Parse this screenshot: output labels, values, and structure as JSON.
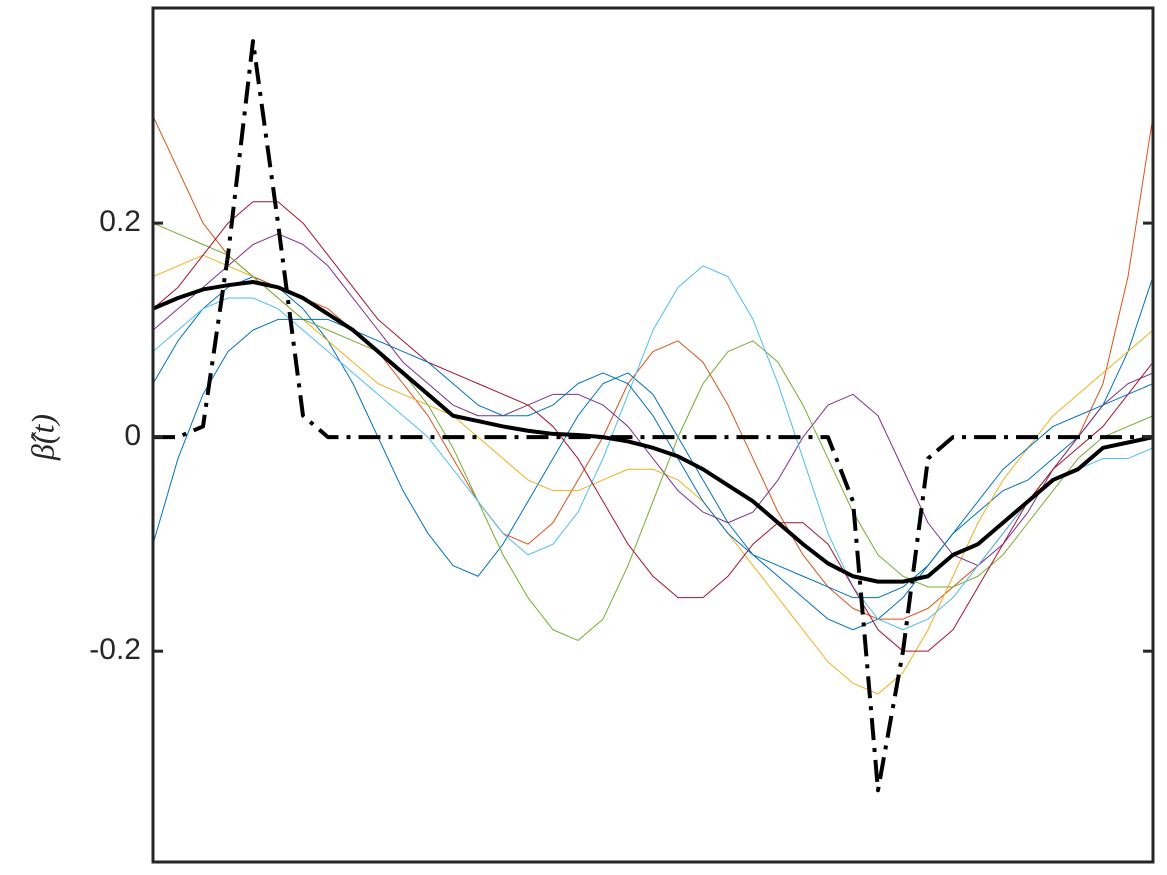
{
  "chart_data": {
    "type": "line",
    "y_label": "β̂(t)",
    "x": [
      0,
      0.025,
      0.05,
      0.075,
      0.1,
      0.125,
      0.15,
      0.175,
      0.2,
      0.225,
      0.25,
      0.275,
      0.3,
      0.325,
      0.35,
      0.375,
      0.4,
      0.425,
      0.45,
      0.475,
      0.5,
      0.525,
      0.55,
      0.575,
      0.6,
      0.625,
      0.65,
      0.675,
      0.7,
      0.725,
      0.75,
      0.775,
      0.8,
      0.825,
      0.85,
      0.875,
      0.9,
      0.925,
      0.95,
      0.975,
      1
    ],
    "xlim": [
      0,
      1
    ],
    "ylim": [
      -0.397,
      0.401
    ],
    "yticks": [
      -0.2,
      0,
      0.2
    ],
    "series": [
      {
        "color": "#0072BD",
        "linewidth": 1,
        "linestyle": "-",
        "values": [
          0.05,
          0.09,
          0.12,
          0.14,
          0.15,
          0.14,
          0.12,
          0.09,
          0.05,
          0.0,
          -0.05,
          -0.09,
          -0.12,
          -0.13,
          -0.1,
          -0.06,
          -0.02,
          0.02,
          0.05,
          0.06,
          0.04,
          0.0,
          -0.04,
          -0.08,
          -0.11,
          -0.13,
          -0.15,
          -0.17,
          -0.18,
          -0.17,
          -0.15,
          -0.12,
          -0.09,
          -0.07,
          -0.05,
          -0.04,
          -0.02,
          0.0,
          0.03,
          0.08,
          0.15
        ]
      },
      {
        "color": "#D95319",
        "linewidth": 1,
        "linestyle": "-",
        "values": [
          0.3,
          0.25,
          0.2,
          0.17,
          0.15,
          0.14,
          0.13,
          0.12,
          0.1,
          0.08,
          0.05,
          0.02,
          -0.02,
          -0.06,
          -0.09,
          -0.1,
          -0.08,
          -0.04,
          0.0,
          0.05,
          0.08,
          0.09,
          0.07,
          0.03,
          -0.02,
          -0.07,
          -0.11,
          -0.14,
          -0.16,
          -0.17,
          -0.17,
          -0.16,
          -0.14,
          -0.12,
          -0.09,
          -0.06,
          -0.03,
          0.0,
          0.05,
          0.15,
          0.3
        ]
      },
      {
        "color": "#EDB120",
        "linewidth": 1,
        "linestyle": "-",
        "values": [
          0.15,
          0.16,
          0.17,
          0.16,
          0.15,
          0.13,
          0.11,
          0.09,
          0.07,
          0.05,
          0.04,
          0.03,
          0.02,
          0.0,
          -0.02,
          -0.04,
          -0.05,
          -0.05,
          -0.04,
          -0.03,
          -0.03,
          -0.04,
          -0.06,
          -0.09,
          -0.12,
          -0.15,
          -0.18,
          -0.21,
          -0.23,
          -0.24,
          -0.22,
          -0.18,
          -0.13,
          -0.08,
          -0.04,
          -0.01,
          0.02,
          0.04,
          0.06,
          0.08,
          0.1
        ]
      },
      {
        "color": "#7E2F8E",
        "linewidth": 1,
        "linestyle": "-",
        "values": [
          0.1,
          0.12,
          0.14,
          0.16,
          0.18,
          0.19,
          0.18,
          0.16,
          0.13,
          0.1,
          0.07,
          0.05,
          0.03,
          0.02,
          0.02,
          0.03,
          0.04,
          0.04,
          0.03,
          0.01,
          -0.02,
          -0.05,
          -0.07,
          -0.08,
          -0.07,
          -0.04,
          0.0,
          0.03,
          0.04,
          0.02,
          -0.03,
          -0.08,
          -0.11,
          -0.12,
          -0.1,
          -0.07,
          -0.03,
          0.0,
          0.03,
          0.05,
          0.06
        ]
      },
      {
        "color": "#77AC30",
        "linewidth": 1,
        "linestyle": "-",
        "values": [
          0.2,
          0.19,
          0.18,
          0.17,
          0.15,
          0.13,
          0.11,
          0.1,
          0.09,
          0.08,
          0.06,
          0.03,
          -0.01,
          -0.06,
          -0.11,
          -0.15,
          -0.18,
          -0.19,
          -0.17,
          -0.12,
          -0.06,
          0.0,
          0.05,
          0.08,
          0.09,
          0.07,
          0.03,
          -0.02,
          -0.07,
          -0.11,
          -0.13,
          -0.14,
          -0.14,
          -0.13,
          -0.11,
          -0.08,
          -0.05,
          -0.02,
          0.0,
          0.01,
          0.02
        ]
      },
      {
        "color": "#4DBEEE",
        "linewidth": 1,
        "linestyle": "-",
        "values": [
          0.08,
          0.1,
          0.12,
          0.13,
          0.13,
          0.12,
          0.1,
          0.08,
          0.06,
          0.04,
          0.02,
          0.0,
          -0.03,
          -0.06,
          -0.09,
          -0.11,
          -0.1,
          -0.07,
          -0.02,
          0.04,
          0.1,
          0.14,
          0.16,
          0.15,
          0.11,
          0.05,
          -0.02,
          -0.09,
          -0.14,
          -0.17,
          -0.18,
          -0.17,
          -0.15,
          -0.12,
          -0.09,
          -0.06,
          -0.04,
          -0.03,
          -0.02,
          -0.02,
          -0.01
        ]
      },
      {
        "color": "#A2142F",
        "linewidth": 1,
        "linestyle": "-",
        "values": [
          0.12,
          0.14,
          0.17,
          0.2,
          0.22,
          0.22,
          0.2,
          0.17,
          0.14,
          0.11,
          0.09,
          0.07,
          0.06,
          0.05,
          0.04,
          0.03,
          0.01,
          -0.02,
          -0.06,
          -0.1,
          -0.13,
          -0.15,
          -0.15,
          -0.13,
          -0.1,
          -0.08,
          -0.08,
          -0.1,
          -0.14,
          -0.18,
          -0.2,
          -0.2,
          -0.18,
          -0.14,
          -0.1,
          -0.06,
          -0.03,
          -0.01,
          0.01,
          0.04,
          0.07
        ]
      },
      {
        "color": "#0072BD",
        "linewidth": 1,
        "linestyle": "-",
        "values": [
          -0.1,
          -0.02,
          0.04,
          0.08,
          0.1,
          0.11,
          0.11,
          0.11,
          0.1,
          0.09,
          0.08,
          0.07,
          0.05,
          0.03,
          0.02,
          0.02,
          0.03,
          0.05,
          0.06,
          0.05,
          0.02,
          -0.02,
          -0.06,
          -0.09,
          -0.11,
          -0.12,
          -0.13,
          -0.14,
          -0.15,
          -0.15,
          -0.14,
          -0.12,
          -0.09,
          -0.06,
          -0.03,
          -0.01,
          0.01,
          0.02,
          0.03,
          0.04,
          0.05
        ]
      },
      {
        "color": "#000000",
        "linewidth": 4,
        "linestyle": "-",
        "values": [
          0.12,
          0.13,
          0.138,
          0.142,
          0.145,
          0.14,
          0.13,
          0.115,
          0.1,
          0.08,
          0.06,
          0.04,
          0.02,
          0.015,
          0.01,
          0.006,
          0.003,
          0.002,
          0,
          -0.004,
          -0.01,
          -0.018,
          -0.03,
          -0.045,
          -0.06,
          -0.08,
          -0.1,
          -0.118,
          -0.13,
          -0.135,
          -0.135,
          -0.13,
          -0.11,
          -0.1,
          -0.08,
          -0.06,
          -0.04,
          -0.03,
          -0.01,
          -0.005,
          0
        ]
      },
      {
        "color": "#000000",
        "linewidth": 4,
        "linestyle": "-.",
        "values": [
          0,
          0,
          0.01,
          0.17,
          0.37,
          0.2,
          0.02,
          0,
          0,
          0,
          0,
          0,
          0,
          0,
          0,
          0,
          0,
          0,
          0,
          0,
          0,
          0,
          0,
          0,
          0,
          0,
          0,
          0,
          -0.06,
          -0.33,
          -0.2,
          -0.02,
          0,
          0,
          0,
          0,
          0,
          0,
          0,
          0,
          0
        ]
      }
    ]
  }
}
